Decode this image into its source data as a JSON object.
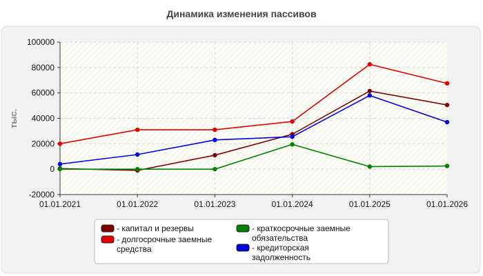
{
  "chart_data": {
    "type": "line",
    "title": "Динамика изменения пассивов",
    "xlabel": "",
    "ylabel": "тыс.",
    "ylim": [
      -20000,
      100000
    ],
    "yticks": [
      -20000,
      0,
      20000,
      40000,
      60000,
      80000,
      100000
    ],
    "categories": [
      "01.01.2021",
      "01.01.2022",
      "01.01.2023",
      "01.01.2024",
      "01.01.2025",
      "01.01.2026"
    ],
    "grid": true,
    "legend_position": "bottom",
    "series": [
      {
        "name": "- капитал и резервы",
        "color": "#7a0000",
        "values": [
          500,
          -1000,
          11000,
          27500,
          61500,
          50500
        ]
      },
      {
        "name": "- долгосрочные заемные средства",
        "color": "#e00000",
        "values": [
          20000,
          31000,
          31000,
          37500,
          82500,
          67500
        ]
      },
      {
        "name": "- краткосрочные заемные обязательства",
        "color": "#008000",
        "values": [
          0,
          0,
          0,
          19500,
          2000,
          2500
        ]
      },
      {
        "name": "- кредиторская задолженность",
        "color": "#0000e0",
        "values": [
          4000,
          11500,
          23000,
          25500,
          58000,
          37000
        ]
      }
    ]
  }
}
